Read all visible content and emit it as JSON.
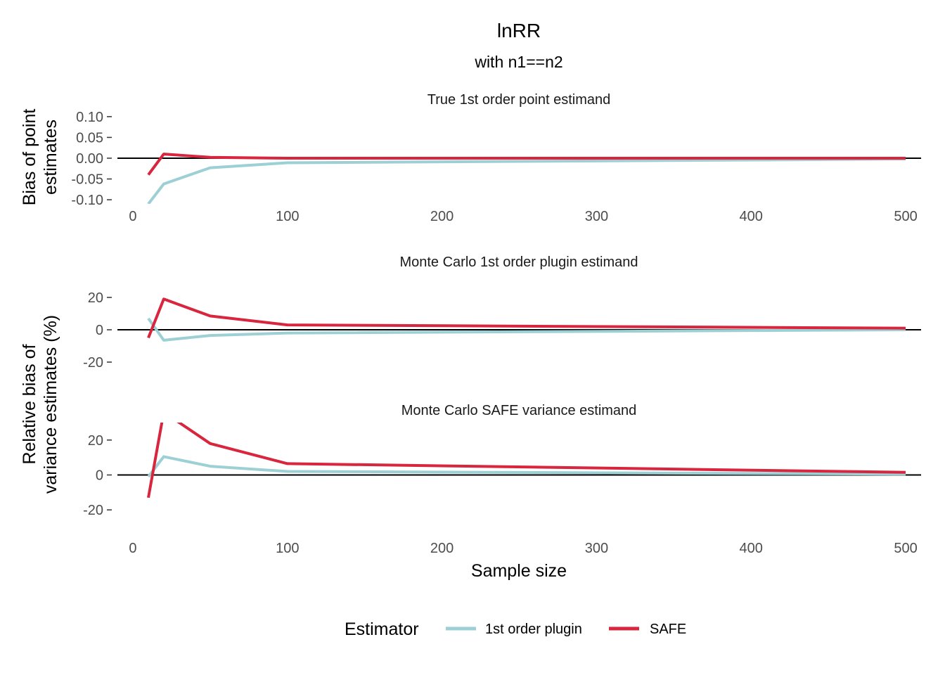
{
  "title": "lnRR",
  "subtitle": "with n1==n2",
  "chart_data": {
    "type": "line",
    "xlabel": "Sample size",
    "xlim": [
      -10,
      510
    ],
    "x_ticks": [
      "0",
      "100",
      "200",
      "300",
      "400",
      "500"
    ],
    "legend": {
      "title": "Estimator",
      "position": "bottom",
      "entries": [
        {
          "name": "1st order plugin",
          "color": "#9dd0d4"
        },
        {
          "name": "SAFE",
          "color": "#d7263d"
        }
      ]
    },
    "panels": [
      {
        "strip": "True 1st order point estimand",
        "ylabel": [
          "Bias of point",
          "estimates"
        ],
        "ylim": [
          -0.11,
          0.115
        ],
        "y_ticks": [
          "0.10",
          "0.05",
          "0.00",
          "-0.05",
          "-0.10"
        ],
        "y_tick_values": [
          0.1,
          0.05,
          0.0,
          -0.05,
          -0.1
        ],
        "x": [
          10,
          20,
          50,
          100,
          500
        ],
        "series": [
          {
            "name": "1st order plugin",
            "values": [
              -0.11,
              -0.062,
              -0.023,
              -0.011,
              -0.002
            ]
          },
          {
            "name": "SAFE",
            "values": [
              -0.04,
              0.01,
              0.002,
              0.0,
              0.0
            ]
          }
        ]
      },
      {
        "strip": "Monte Carlo 1st order plugin estimand",
        "ylim": [
          -30,
          30
        ],
        "y_ticks": [
          "20",
          "0",
          "-20"
        ],
        "y_tick_values": [
          20,
          0,
          -20
        ],
        "x": [
          10,
          20,
          50,
          100,
          500
        ],
        "series": [
          {
            "name": "1st order plugin",
            "values": [
              7,
              -6.5,
              -3.5,
              -2,
              0
            ]
          },
          {
            "name": "SAFE",
            "values": [
              -5,
              19,
              8.5,
              3,
              1
            ]
          }
        ]
      },
      {
        "strip": "Monte Carlo SAFE variance estimand",
        "ylim": [
          -30,
          30
        ],
        "y_ticks": [
          "20",
          "0",
          "-20"
        ],
        "y_tick_values": [
          20,
          0,
          -20
        ],
        "x": [
          10,
          20,
          50,
          100,
          500
        ],
        "series": [
          {
            "name": "1st order plugin",
            "values": [
              -1,
              10.5,
              5,
              2,
              0.5
            ]
          },
          {
            "name": "SAFE",
            "values": [
              -13,
              36,
              18,
              6.5,
              1.5
            ]
          }
        ]
      }
    ],
    "shared_ylabel": [
      "Relative bias of",
      "variance estimates (%)"
    ]
  }
}
